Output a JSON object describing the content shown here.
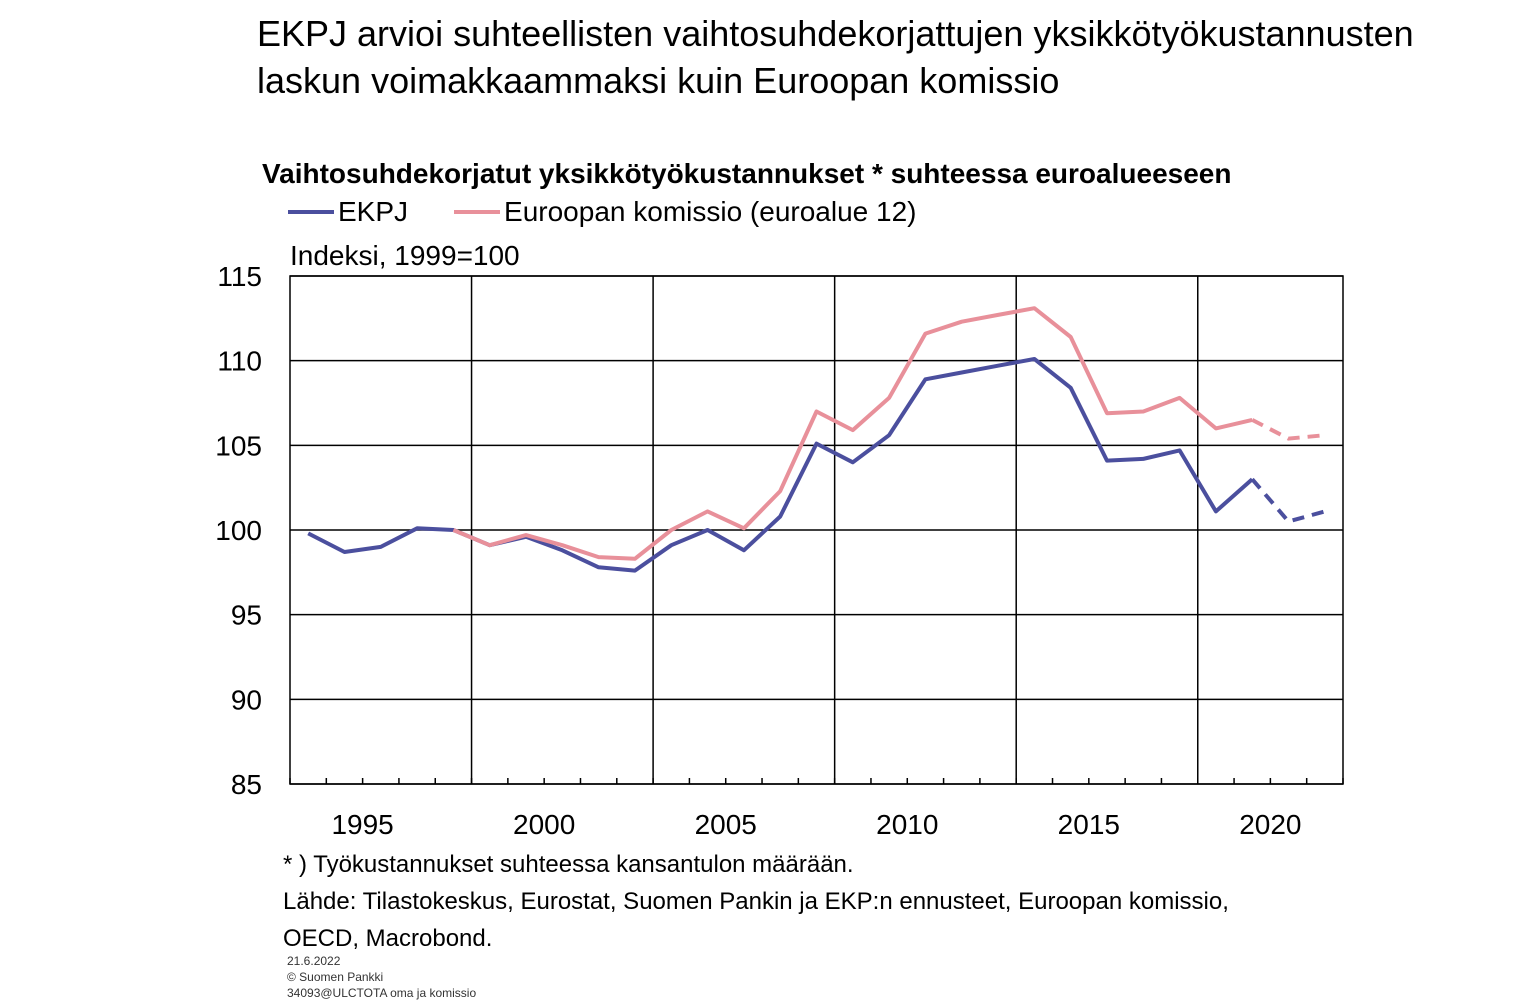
{
  "header": {
    "title": "EKPJ arvioi suhteellisten vaihtosuhdekorjattujen yksikkötyökustannusten laskun voimakkaammaksi kuin Euroopan komissio"
  },
  "chart_data": {
    "type": "line",
    "title": "Vaihtosuhdekorjatut yksikkötyökustannukset * suhteessa euroalueeseen",
    "ylabel": "Indeksi, 1999=100",
    "xlabel": "",
    "ylim": [
      85,
      115
    ],
    "yticks": [
      85,
      90,
      95,
      100,
      105,
      110,
      115
    ],
    "xticks": [
      1995,
      2000,
      2005,
      2010,
      2015,
      2020
    ],
    "grid": true,
    "legend_position": "top-left",
    "forecast_from": 2020,
    "series": [
      {
        "name": "EKPJ",
        "color": "#4b4f9e",
        "x": [
          1994,
          1995,
          1996,
          1997,
          1998,
          1999,
          2000,
          2001,
          2002,
          2003,
          2004,
          2005,
          2006,
          2007,
          2008,
          2009,
          2010,
          2011,
          2012,
          2013,
          2014,
          2015,
          2016,
          2017,
          2018,
          2019,
          2020,
          2021,
          2022
        ],
        "values": [
          99.8,
          98.7,
          99.0,
          100.1,
          100.0,
          99.1,
          99.6,
          98.8,
          97.8,
          97.6,
          99.1,
          100.0,
          98.8,
          100.8,
          105.1,
          104.0,
          105.6,
          108.9,
          109.3,
          109.7,
          110.1,
          108.4,
          104.1,
          104.2,
          104.7,
          101.1,
          103.0,
          100.5,
          101.1
        ]
      },
      {
        "name": "Euroopan komissio (euroalue 12)",
        "color": "#e8909a",
        "x": [
          1998,
          1999,
          2000,
          2001,
          2002,
          2003,
          2004,
          2005,
          2006,
          2007,
          2008,
          2009,
          2010,
          2011,
          2012,
          2013,
          2014,
          2015,
          2016,
          2017,
          2018,
          2019,
          2020,
          2021,
          2022
        ],
        "values": [
          100.0,
          99.1,
          99.7,
          99.1,
          98.4,
          98.3,
          100.0,
          101.1,
          100.1,
          102.3,
          107.0,
          105.9,
          107.8,
          111.6,
          112.3,
          112.7,
          113.1,
          111.4,
          106.9,
          107.0,
          107.8,
          106.0,
          106.5,
          105.4,
          105.6
        ]
      }
    ]
  },
  "notes": {
    "footnote": "* ) Työkustannukset suhteessa kansantulon määrään.",
    "source_line1": "Lähde: Tilastokeskus, Eurostat, Suomen Pankin ja EKP:n ennusteet, Euroopan komissio,",
    "source_line2": "OECD, Macrobond."
  },
  "meta": {
    "date": "21.6.2022",
    "copyright": "© Suomen Pankki",
    "code": "34093@ULCTOTA oma ja komissio"
  }
}
